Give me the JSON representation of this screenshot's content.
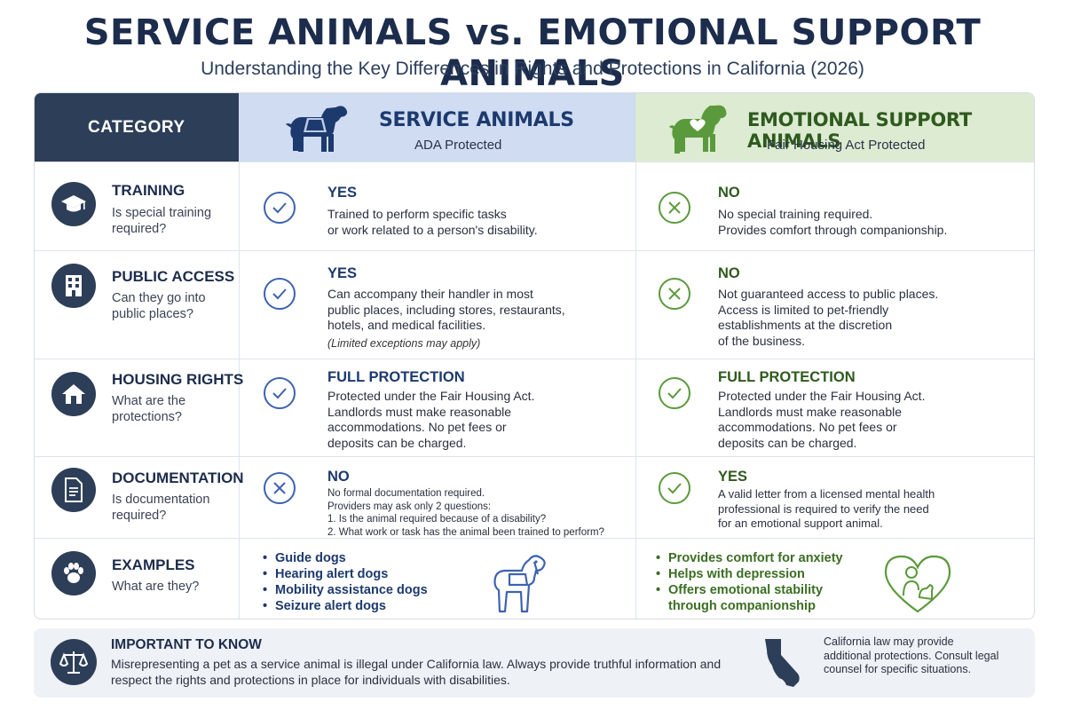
{
  "title": "SERVICE ANIMALS vs. EMOTIONAL SUPPORT ANIMALS",
  "subtitle": "Understanding the Key Differences in Rights and Protections in California (2026)",
  "header": {
    "category": "CATEGORY",
    "service": {
      "title": "SERVICE ANIMALS",
      "sub": "ADA Protected"
    },
    "esa": {
      "title": "EMOTIONAL SUPPORT ANIMALS",
      "sub": "Fair Housing Act Protected"
    }
  },
  "rows": [
    {
      "name": "TRAINING",
      "question": "Is special training required?",
      "service": {
        "answer": "YES",
        "mark": "check",
        "desc": "Trained to perform specific tasks\nor work related to a person's disability."
      },
      "esa": {
        "answer": "NO",
        "mark": "cross",
        "desc": "No special training required.\nProvides comfort through companionship."
      }
    },
    {
      "name": "PUBLIC ACCESS",
      "question": "Can they go into public places?",
      "service": {
        "answer": "YES",
        "mark": "check",
        "desc": "Can accompany their handler in most\npublic places, including stores, restaurants,\nhotels, and medical facilities.",
        "note": "(Limited exceptions may apply)"
      },
      "esa": {
        "answer": "NO",
        "mark": "cross",
        "desc": "Not guaranteed access to public places.\nAccess is limited to pet-friendly\nestablishments at the discretion\nof the business."
      }
    },
    {
      "name": "HOUSING RIGHTS",
      "question": "What are the protections?",
      "service": {
        "answer": "FULL PROTECTION",
        "mark": "check",
        "desc": "Protected under the Fair Housing Act.\nLandlords must make reasonable\naccommodations. No pet fees or\ndeposits can be charged."
      },
      "esa": {
        "answer": "FULL PROTECTION",
        "mark": "check",
        "desc": "Protected under the Fair Housing Act.\nLandlords must make reasonable\naccommodations. No pet fees or\ndeposits can be charged."
      }
    },
    {
      "name": "DOCUMENTATION",
      "question": "Is documentation required?",
      "service": {
        "answer": "NO",
        "mark": "cross",
        "desc": "No formal documentation required.\nProviders may ask only 2 questions:\n1. Is the animal required because of a disability?\n2. What work or task has the animal been trained to perform?"
      },
      "esa": {
        "answer": "YES",
        "mark": "check",
        "desc": "A valid letter from a licensed mental health\nprofessional is required to verify the need\nfor an emotional support animal."
      }
    },
    {
      "name": "EXAMPLES",
      "question": "What are they?",
      "service": {
        "items": [
          "Guide dogs",
          "Hearing alert dogs",
          "Mobility assistance dogs",
          "Seizure alert dogs"
        ]
      },
      "esa": {
        "items": [
          "Provides comfort for anxiety",
          "Helps with depression",
          "Offers emotional stability\nthrough companionship"
        ]
      }
    }
  ],
  "footer": {
    "title": "IMPORTANT TO KNOW",
    "text": "Misrepresenting a pet as a service animal is illegal under California law. Always provide truthful information and respect the rights and protections in place for individuals with disabilities.",
    "ca_note": "California law may provide additional protections. Consult legal counsel for specific situations."
  },
  "colors": {
    "navy": "#2d3e58",
    "service_blue": "#3d63b0",
    "esa_green": "#5b9a3c",
    "service_header": "#cfdcf2",
    "esa_header": "#dcebd2"
  },
  "icons": {
    "training": "graduation-cap-icon",
    "public_access": "building-icon",
    "housing": "house-icon",
    "documentation": "document-icon",
    "examples": "paw-icon",
    "important": "scales-icon",
    "service_header": "service-dog-vest-icon",
    "esa_header": "dog-heart-icon",
    "california": "california-map-icon"
  }
}
